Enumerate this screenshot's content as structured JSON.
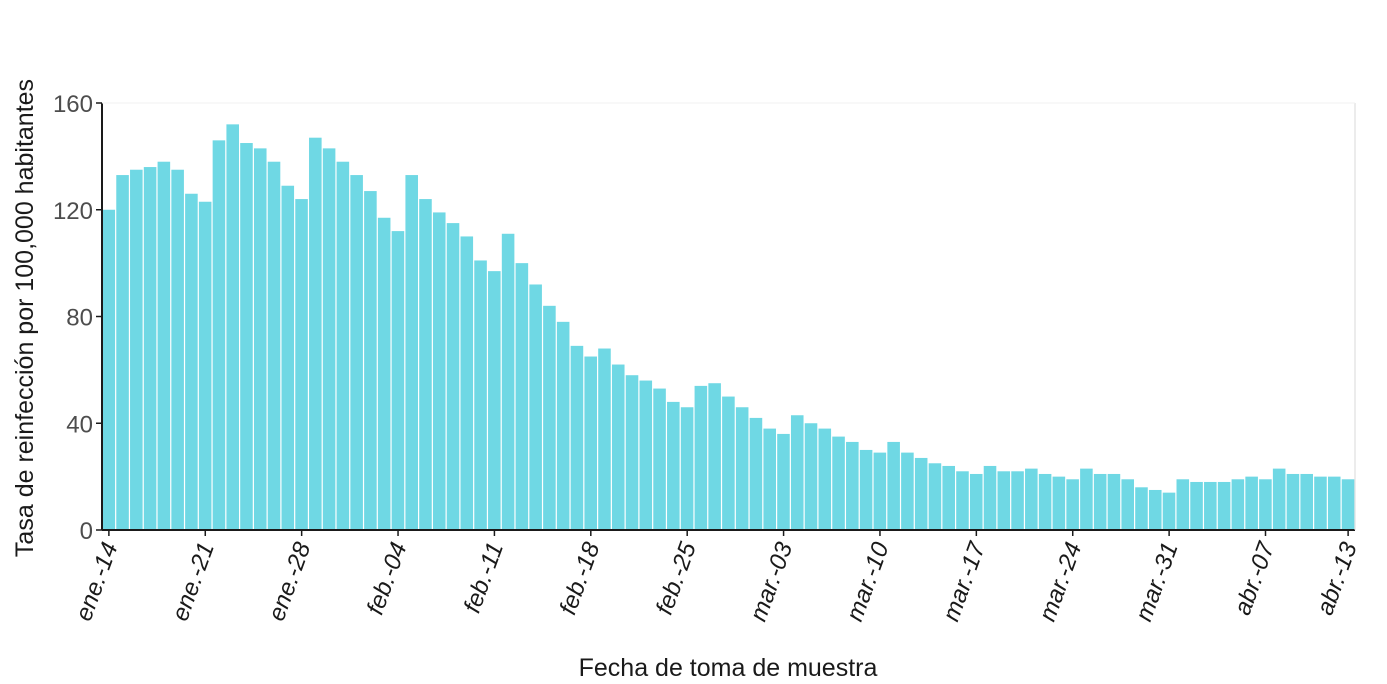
{
  "chart_data": {
    "type": "bar",
    "title": "",
    "xlabel": "Fecha de toma de muestra",
    "ylabel": "Tasa de reinfección por 100,000 habitantes",
    "ylim": [
      0,
      160
    ],
    "yticks": [
      0,
      40,
      80,
      120,
      160
    ],
    "grid": false,
    "bar_color": "#6fd8e4",
    "x_tick_labels": [
      "ene.-14",
      "ene.-21",
      "ene.-28",
      "feb.-04",
      "feb.-11",
      "feb.-18",
      "feb.-25",
      "mar.-03",
      "mar.-10",
      "mar.-17",
      "mar.-24",
      "mar.-31",
      "abr.-07",
      "abr.-13"
    ],
    "x_tick_indices": [
      0,
      7,
      14,
      21,
      28,
      35,
      42,
      49,
      56,
      63,
      70,
      77,
      84,
      90
    ],
    "x_start": "ene.-14",
    "values": [
      120,
      133,
      135,
      136,
      138,
      135,
      126,
      123,
      146,
      152,
      145,
      143,
      138,
      129,
      124,
      147,
      143,
      138,
      133,
      127,
      117,
      112,
      133,
      124,
      119,
      115,
      110,
      101,
      97,
      111,
      100,
      92,
      84,
      78,
      69,
      65,
      68,
      62,
      58,
      56,
      53,
      48,
      46,
      54,
      55,
      50,
      46,
      42,
      38,
      36,
      43,
      40,
      38,
      35,
      33,
      30,
      29,
      33,
      29,
      27,
      25,
      24,
      22,
      21,
      24,
      22,
      22,
      23,
      21,
      20,
      19,
      23,
      21,
      21,
      19,
      16,
      15,
      14,
      19,
      18,
      18,
      18,
      19,
      20,
      19,
      23,
      21,
      21,
      20,
      20,
      19
    ]
  }
}
